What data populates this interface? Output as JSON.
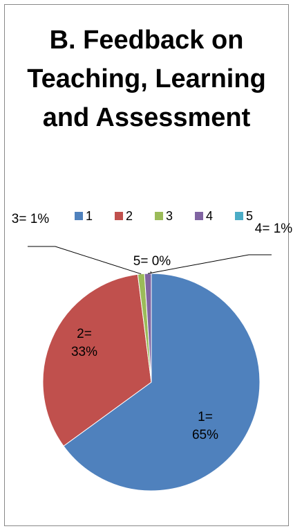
{
  "chart_data": {
    "type": "pie",
    "title": "B. Feedback on Teaching, Learning and Assessment",
    "categories": [
      "1",
      "2",
      "3",
      "4",
      "5"
    ],
    "values": [
      65,
      33,
      1,
      1,
      0
    ],
    "value_labels": [
      "1= 65%",
      "2= 33%",
      "3= 1%",
      "4= 1%",
      "5= 0%"
    ],
    "colors": [
      "#4f81bd",
      "#c0504d",
      "#9bbb59",
      "#8064a2",
      "#4bacc6"
    ],
    "legend": "top"
  }
}
